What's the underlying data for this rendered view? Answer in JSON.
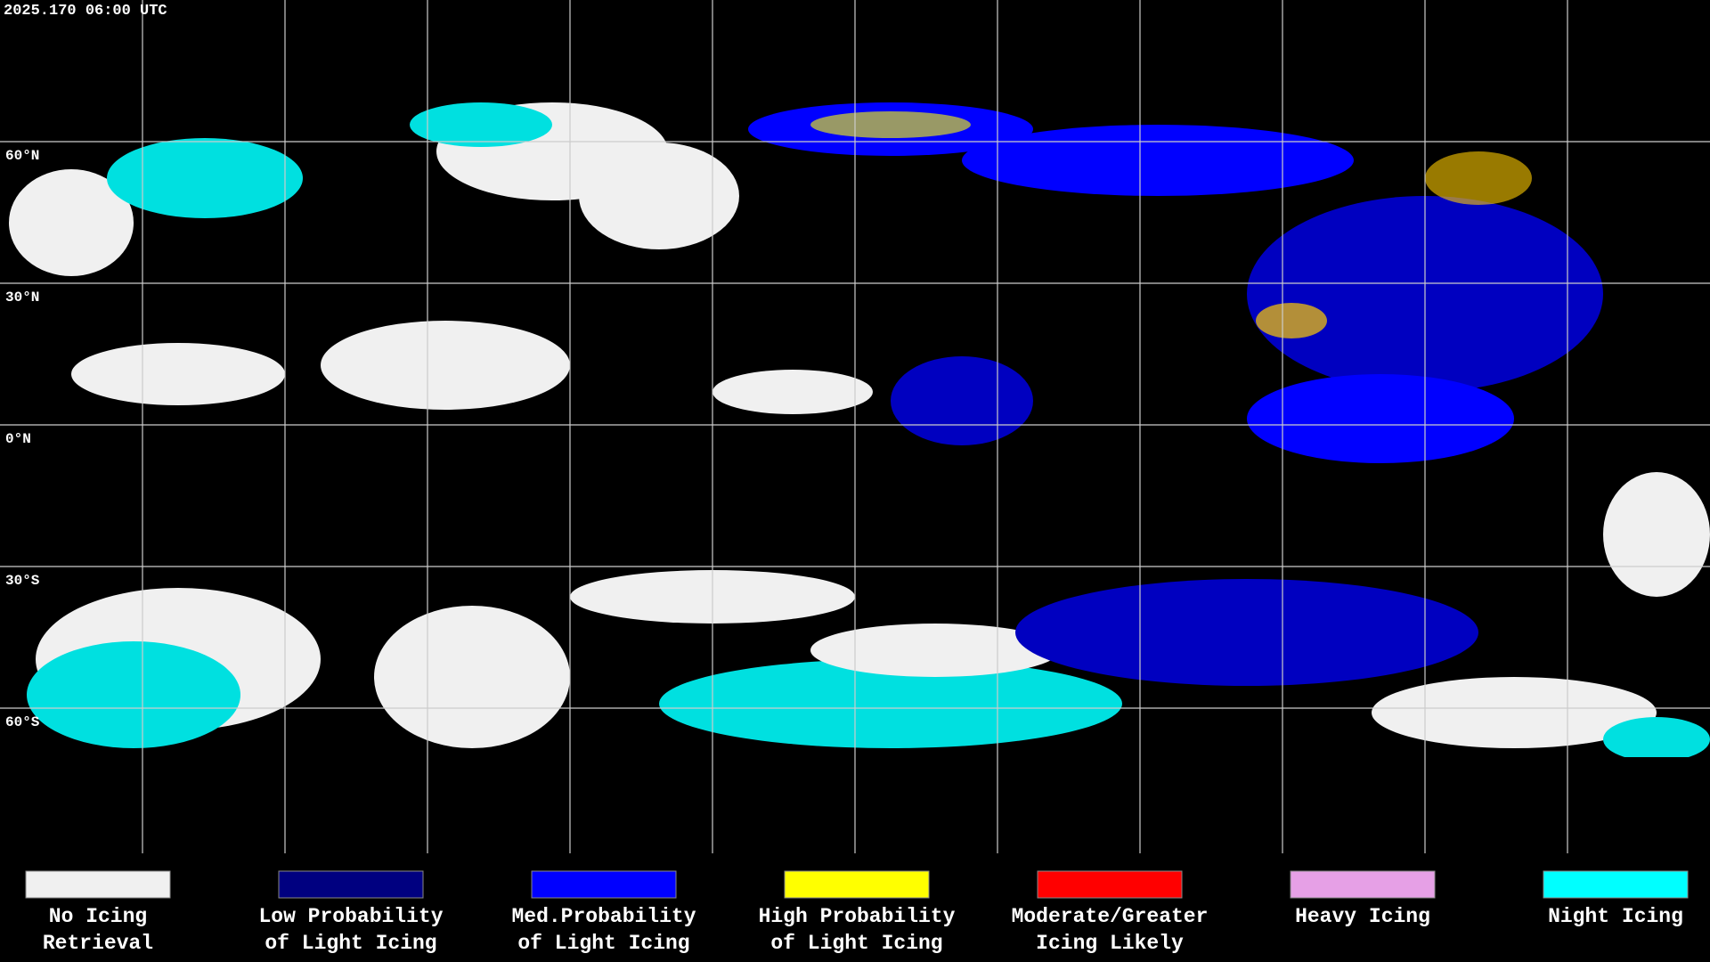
{
  "timestamp": "2025.170 06:00 UTC",
  "grid_labels": [
    "60°N",
    "30°N",
    "0°N",
    "30°S",
    "60°S"
  ],
  "legend": [
    {
      "label": [
        "No Icing",
        "Retrieval"
      ],
      "color": "#f0f0f0"
    },
    {
      "label": [
        "Low Probability",
        "of Light Icing"
      ],
      "color": "#000080"
    },
    {
      "label": [
        "Med.Probability",
        "of Light Icing"
      ],
      "color": "#0000ff"
    },
    {
      "label": [
        "High Probability",
        "of Light Icing"
      ],
      "color": "#ffff00"
    },
    {
      "label": [
        "Moderate/Greater",
        "Icing Likely"
      ],
      "color": "#ff0000"
    },
    {
      "label": [
        "Heavy Icing"
      ],
      "color": "#e6a0e6"
    },
    {
      "label": [
        "Night Icing"
      ],
      "color": "#00ffff"
    }
  ]
}
